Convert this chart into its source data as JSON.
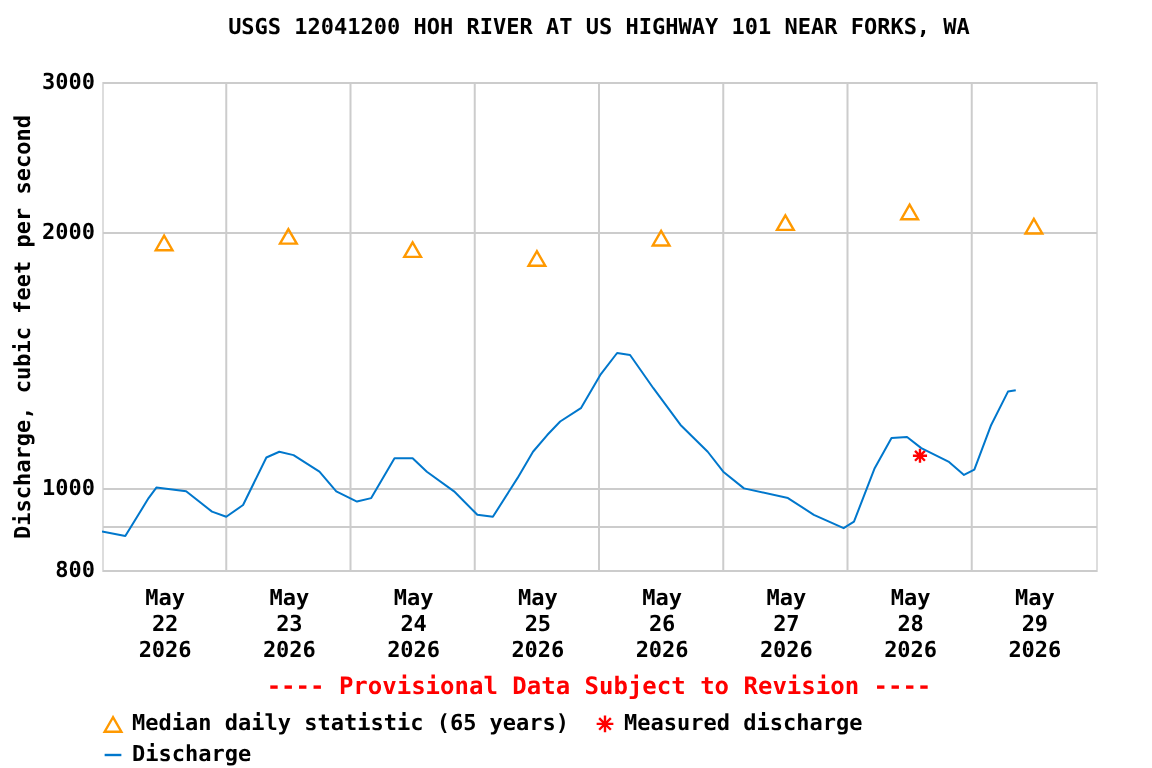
{
  "chart_data": {
    "type": "line",
    "title": "USGS 12041200 HOH RIVER AT US HIGHWAY 101 NEAR FORKS, WA",
    "ylabel": "Discharge, cubic feet per second",
    "annotations": [
      "---- Provisional Data Subject to Revision ----"
    ],
    "log": true,
    "grid": true,
    "legend": "bottom",
    "xlim": [
      "2026-05-22T00:00",
      "2026-05-30T00:00"
    ],
    "xticks": [
      {
        "value": "2026-05-22T12:00",
        "label": "May 22 2026"
      },
      {
        "value": "2026-05-23T00:00",
        "label": null
      },
      {
        "value": "2026-05-23T12:00",
        "label": "May 23 2026"
      },
      {
        "value": "2026-05-24T00:00",
        "label": null
      },
      {
        "value": "2026-05-24T12:00",
        "label": "May 24 2026"
      },
      {
        "value": "2026-05-25T00:00",
        "label": null
      },
      {
        "value": "2026-05-25T12:00",
        "label": "May 25 2026"
      },
      {
        "value": "2026-05-26T00:00",
        "label": null
      },
      {
        "value": "2026-05-26T12:00",
        "label": "May 26 2026"
      },
      {
        "value": "2026-05-27T00:00",
        "label": null
      },
      {
        "value": "2026-05-27T12:00",
        "label": "May 27 2026"
      },
      {
        "value": "2026-05-28T00:00",
        "label": null
      },
      {
        "value": "2026-05-28T12:00",
        "label": "May 28 2026"
      },
      {
        "value": "2026-05-29T00:00",
        "label": null
      },
      {
        "value": "2026-05-29T12:00",
        "label": "May 29 2026"
      }
    ],
    "ylim": [
      800,
      3000
    ],
    "yticks": [
      800,
      {
        "value": 900,
        "label": null
      },
      1000,
      2000,
      3000
    ],
    "series": [
      {
        "name": "Median daily statistic (65 years)",
        "type": "scatter",
        "marker": "triangle",
        "color": "#ff9900",
        "x": [
          "2026-05-22T12:00",
          "2026-05-23T12:00",
          "2026-05-24T12:00",
          "2026-05-25T12:00",
          "2026-05-26T12:00",
          "2026-05-27T12:00",
          "2026-05-28T12:00",
          "2026-05-29T12:00"
        ],
        "values": [
          1940,
          1975,
          1905,
          1860,
          1965,
          2050,
          2110,
          2030
        ]
      },
      {
        "name": "Measured discharge",
        "type": "scatter",
        "marker": "cross",
        "color": "#ff0000",
        "x": [
          "2026-05-28T14:00"
        ],
        "values": [
          1090
        ]
      },
      {
        "name": "Discharge",
        "marker": "none",
        "color": "#0077cc",
        "x": [
          "2026-05-22T00:00",
          "2026-05-22T04:30",
          "2026-05-22T09:00",
          "2026-05-22T10:30",
          "2026-05-22T16:15",
          "2026-05-22T21:15",
          "2026-05-23T00:00",
          "2026-05-23T03:15",
          "2026-05-23T07:45",
          "2026-05-23T10:15",
          "2026-05-23T13:00",
          "2026-05-23T18:00",
          "2026-05-23T21:15",
          "2026-05-24T01:15",
          "2026-05-24T04:00",
          "2026-05-24T08:30",
          "2026-05-24T12:00",
          "2026-05-24T14:45",
          "2026-05-24T20:00",
          "2026-05-25T00:30",
          "2026-05-25T03:30",
          "2026-05-25T08:15",
          "2026-05-25T11:15",
          "2026-05-25T14:00",
          "2026-05-25T16:30",
          "2026-05-25T20:30",
          "2026-05-26T00:15",
          "2026-05-26T03:30",
          "2026-05-26T06:00",
          "2026-05-26T10:30",
          "2026-05-26T15:45",
          "2026-05-26T21:00",
          "2026-05-27T00:00",
          "2026-05-27T04:00",
          "2026-05-27T12:30",
          "2026-05-27T17:30",
          "2026-05-27T23:15",
          "2026-05-28T01:15",
          "2026-05-28T05:15",
          "2026-05-28T08:30",
          "2026-05-28T11:30",
          "2026-05-28T14:15",
          "2026-05-28T19:30",
          "2026-05-28T22:30",
          "2026-05-29T00:30",
          "2026-05-29T03:45",
          "2026-05-29T07:00",
          "2026-05-29T08:30"
        ],
        "values": [
          888,
          877,
          972,
          1000,
          990,
          937,
          924,
          954,
          1085,
          1102,
          1092,
          1044,
          990,
          963,
          972,
          1083,
          1083,
          1044,
          990,
          929,
          924,
          1026,
          1102,
          1153,
          1196,
          1240,
          1357,
          1440,
          1432,
          1309,
          1185,
          1102,
          1044,
          998,
          972,
          929,
          896,
          912,
          1054,
          1144,
          1147,
          1113,
          1073,
          1035,
          1050,
          1185,
          1297,
          1302
        ]
      }
    ]
  }
}
